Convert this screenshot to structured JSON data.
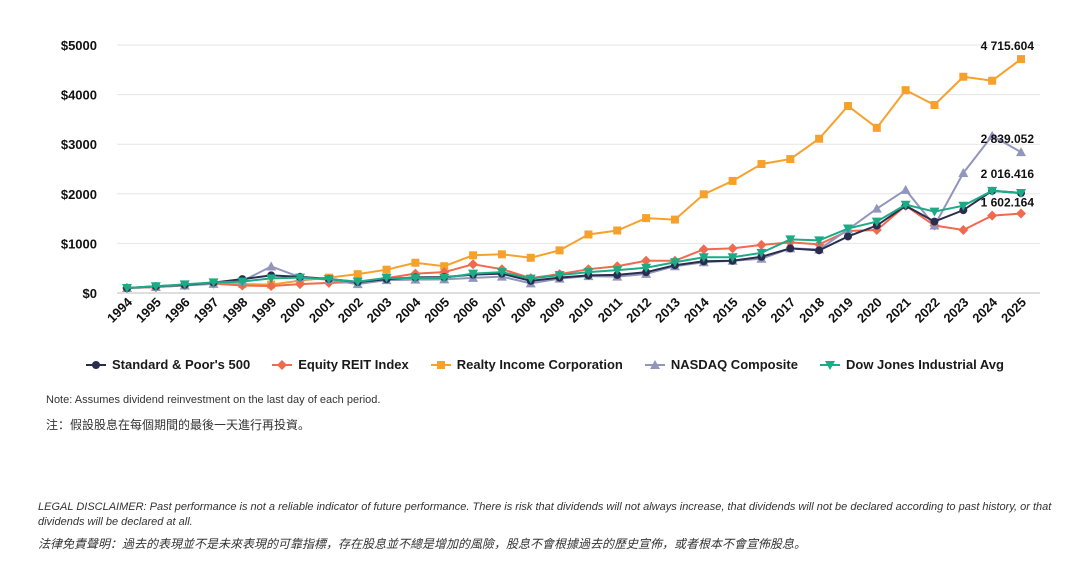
{
  "chart_data": {
    "type": "line",
    "categories": [
      "1994",
      "1995",
      "1996",
      "1997",
      "1998",
      "1999",
      "2000",
      "2001",
      "2002",
      "2003",
      "2004",
      "2005",
      "2006",
      "2007",
      "2008",
      "2009",
      "2010",
      "2011",
      "2012",
      "2013",
      "2014",
      "2015",
      "2016",
      "2017",
      "2018",
      "2019",
      "2020",
      "2021",
      "2022",
      "2023",
      "2024",
      "2025"
    ],
    "ylim": [
      0,
      5000
    ],
    "yticks": [
      0,
      1000,
      2000,
      3000,
      4000,
      5000
    ],
    "ytick_labels": [
      "$0",
      "$1000",
      "$2000",
      "$3000",
      "$4000",
      "$5000"
    ],
    "grid": true,
    "legend_position": "bottom",
    "series": [
      {
        "name": "Standard & Poor's 500",
        "color": "#2b2d4f",
        "marker": "circle",
        "values": [
          100,
          135,
          165,
          210,
          280,
          355,
          325,
          285,
          220,
          280,
          315,
          320,
          370,
          390,
          245,
          310,
          355,
          365,
          420,
          560,
          640,
          650,
          730,
          900,
          860,
          1140,
          1360,
          1760,
          1440,
          1670,
          2060,
          2016.416
        ]
      },
      {
        "name": "Equity REIT Index",
        "color": "#ef6a4e",
        "marker": "diamond",
        "values": [
          100,
          115,
          155,
          190,
          150,
          140,
          180,
          205,
          220,
          300,
          390,
          420,
          580,
          480,
          300,
          380,
          480,
          540,
          650,
          650,
          880,
          900,
          970,
          1020,
          980,
          1250,
          1270,
          1760,
          1360,
          1270,
          1560,
          1602.164
        ]
      },
      {
        "name": "Realty Income Corporation",
        "color": "#f6a12c",
        "marker": "square",
        "values": [
          100,
          125,
          150,
          195,
          180,
          170,
          250,
          310,
          380,
          470,
          610,
          540,
          760,
          780,
          710,
          860,
          1180,
          1260,
          1510,
          1480,
          1990,
          2260,
          2600,
          2700,
          3110,
          3770,
          3330,
          4090,
          3790,
          4360,
          4280,
          4715.604
        ]
      },
      {
        "name": "NASDAQ Composite",
        "color": "#9296bd",
        "marker": "triangle-up",
        "values": [
          100,
          120,
          150,
          185,
          240,
          535,
          320,
          265,
          180,
          260,
          270,
          275,
          305,
          330,
          195,
          290,
          340,
          330,
          385,
          540,
          620,
          650,
          690,
          900,
          880,
          1280,
          1700,
          2080,
          1360,
          2420,
          3170,
          2839.052
        ]
      },
      {
        "name": "Dow Jones Industrial Avg",
        "color": "#1bab86",
        "marker": "triangle-down",
        "values": [
          100,
          135,
          175,
          215,
          230,
          295,
          310,
          280,
          230,
          305,
          300,
          305,
          390,
          420,
          290,
          360,
          420,
          460,
          510,
          620,
          720,
          720,
          810,
          1080,
          1060,
          1300,
          1440,
          1780,
          1640,
          1760,
          2060,
          2016.416
        ]
      }
    ],
    "annotations": [
      {
        "series": "Realty Income Corporation",
        "category": "2025",
        "text": "4 715.604"
      },
      {
        "series": "NASDAQ Composite",
        "category": "2025",
        "text": "2 839.052"
      },
      {
        "series": "Dow Jones Industrial Avg",
        "category": "2025",
        "text": "2 016.416"
      },
      {
        "series": "Equity REIT Index",
        "category": "2025",
        "text": "1 602.164"
      }
    ]
  },
  "notes": {
    "en": "Note: Assumes dividend reinvestment on the last day of each period.",
    "zh": "注：假設股息在每個期間的最後一天進行再投資。"
  },
  "disclaimer": {
    "en": "LEGAL DISCLAIMER: Past performance is not a reliable indicator of future performance. There is risk that dividends will not always increase, that dividends will not be declared according to past history, or that dividends will be declared at all.",
    "zh": "法律免責聲明：過去的表現並不是未來表現的可靠指標，存在股息並不總是增加的風險，股息不會根據過去的歷史宣佈，或者根本不會宣佈股息。"
  }
}
